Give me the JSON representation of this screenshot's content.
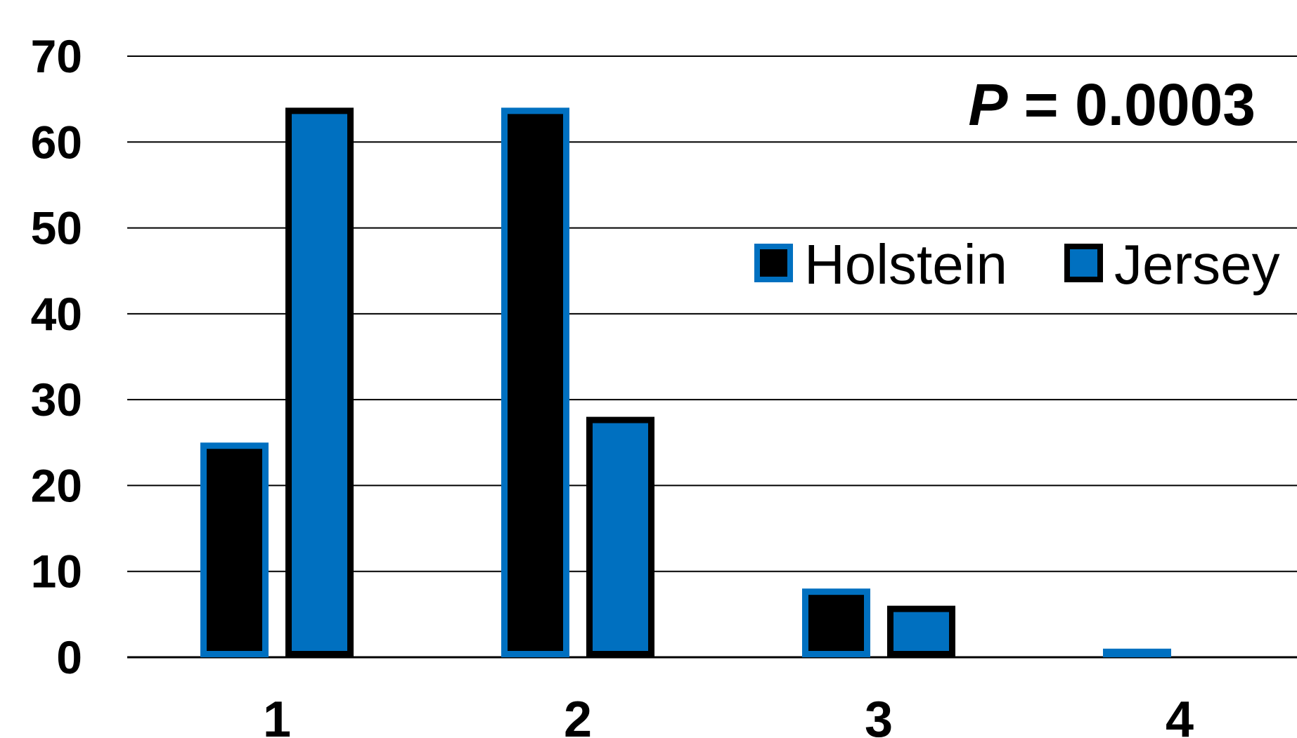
{
  "chart_data": {
    "type": "bar",
    "categories": [
      "1",
      "2",
      "3",
      "4"
    ],
    "series": [
      {
        "name": "Holstein",
        "values": [
          25,
          64,
          8,
          1
        ],
        "fill": "#000000",
        "stroke": "#0070C0"
      },
      {
        "name": "Jersey",
        "values": [
          64,
          28,
          6,
          0
        ],
        "fill": "#0070C0",
        "stroke": "#000000"
      }
    ],
    "yticks": [
      0,
      10,
      20,
      30,
      40,
      50,
      60,
      70
    ],
    "ylim": [
      0,
      70
    ],
    "grid": true,
    "legend_position": "top-right",
    "annotation": {
      "label_italic": "P",
      "label_rest": " = 0.0003"
    },
    "colors": {
      "blue": "#0070C0",
      "black": "#000000"
    }
  }
}
